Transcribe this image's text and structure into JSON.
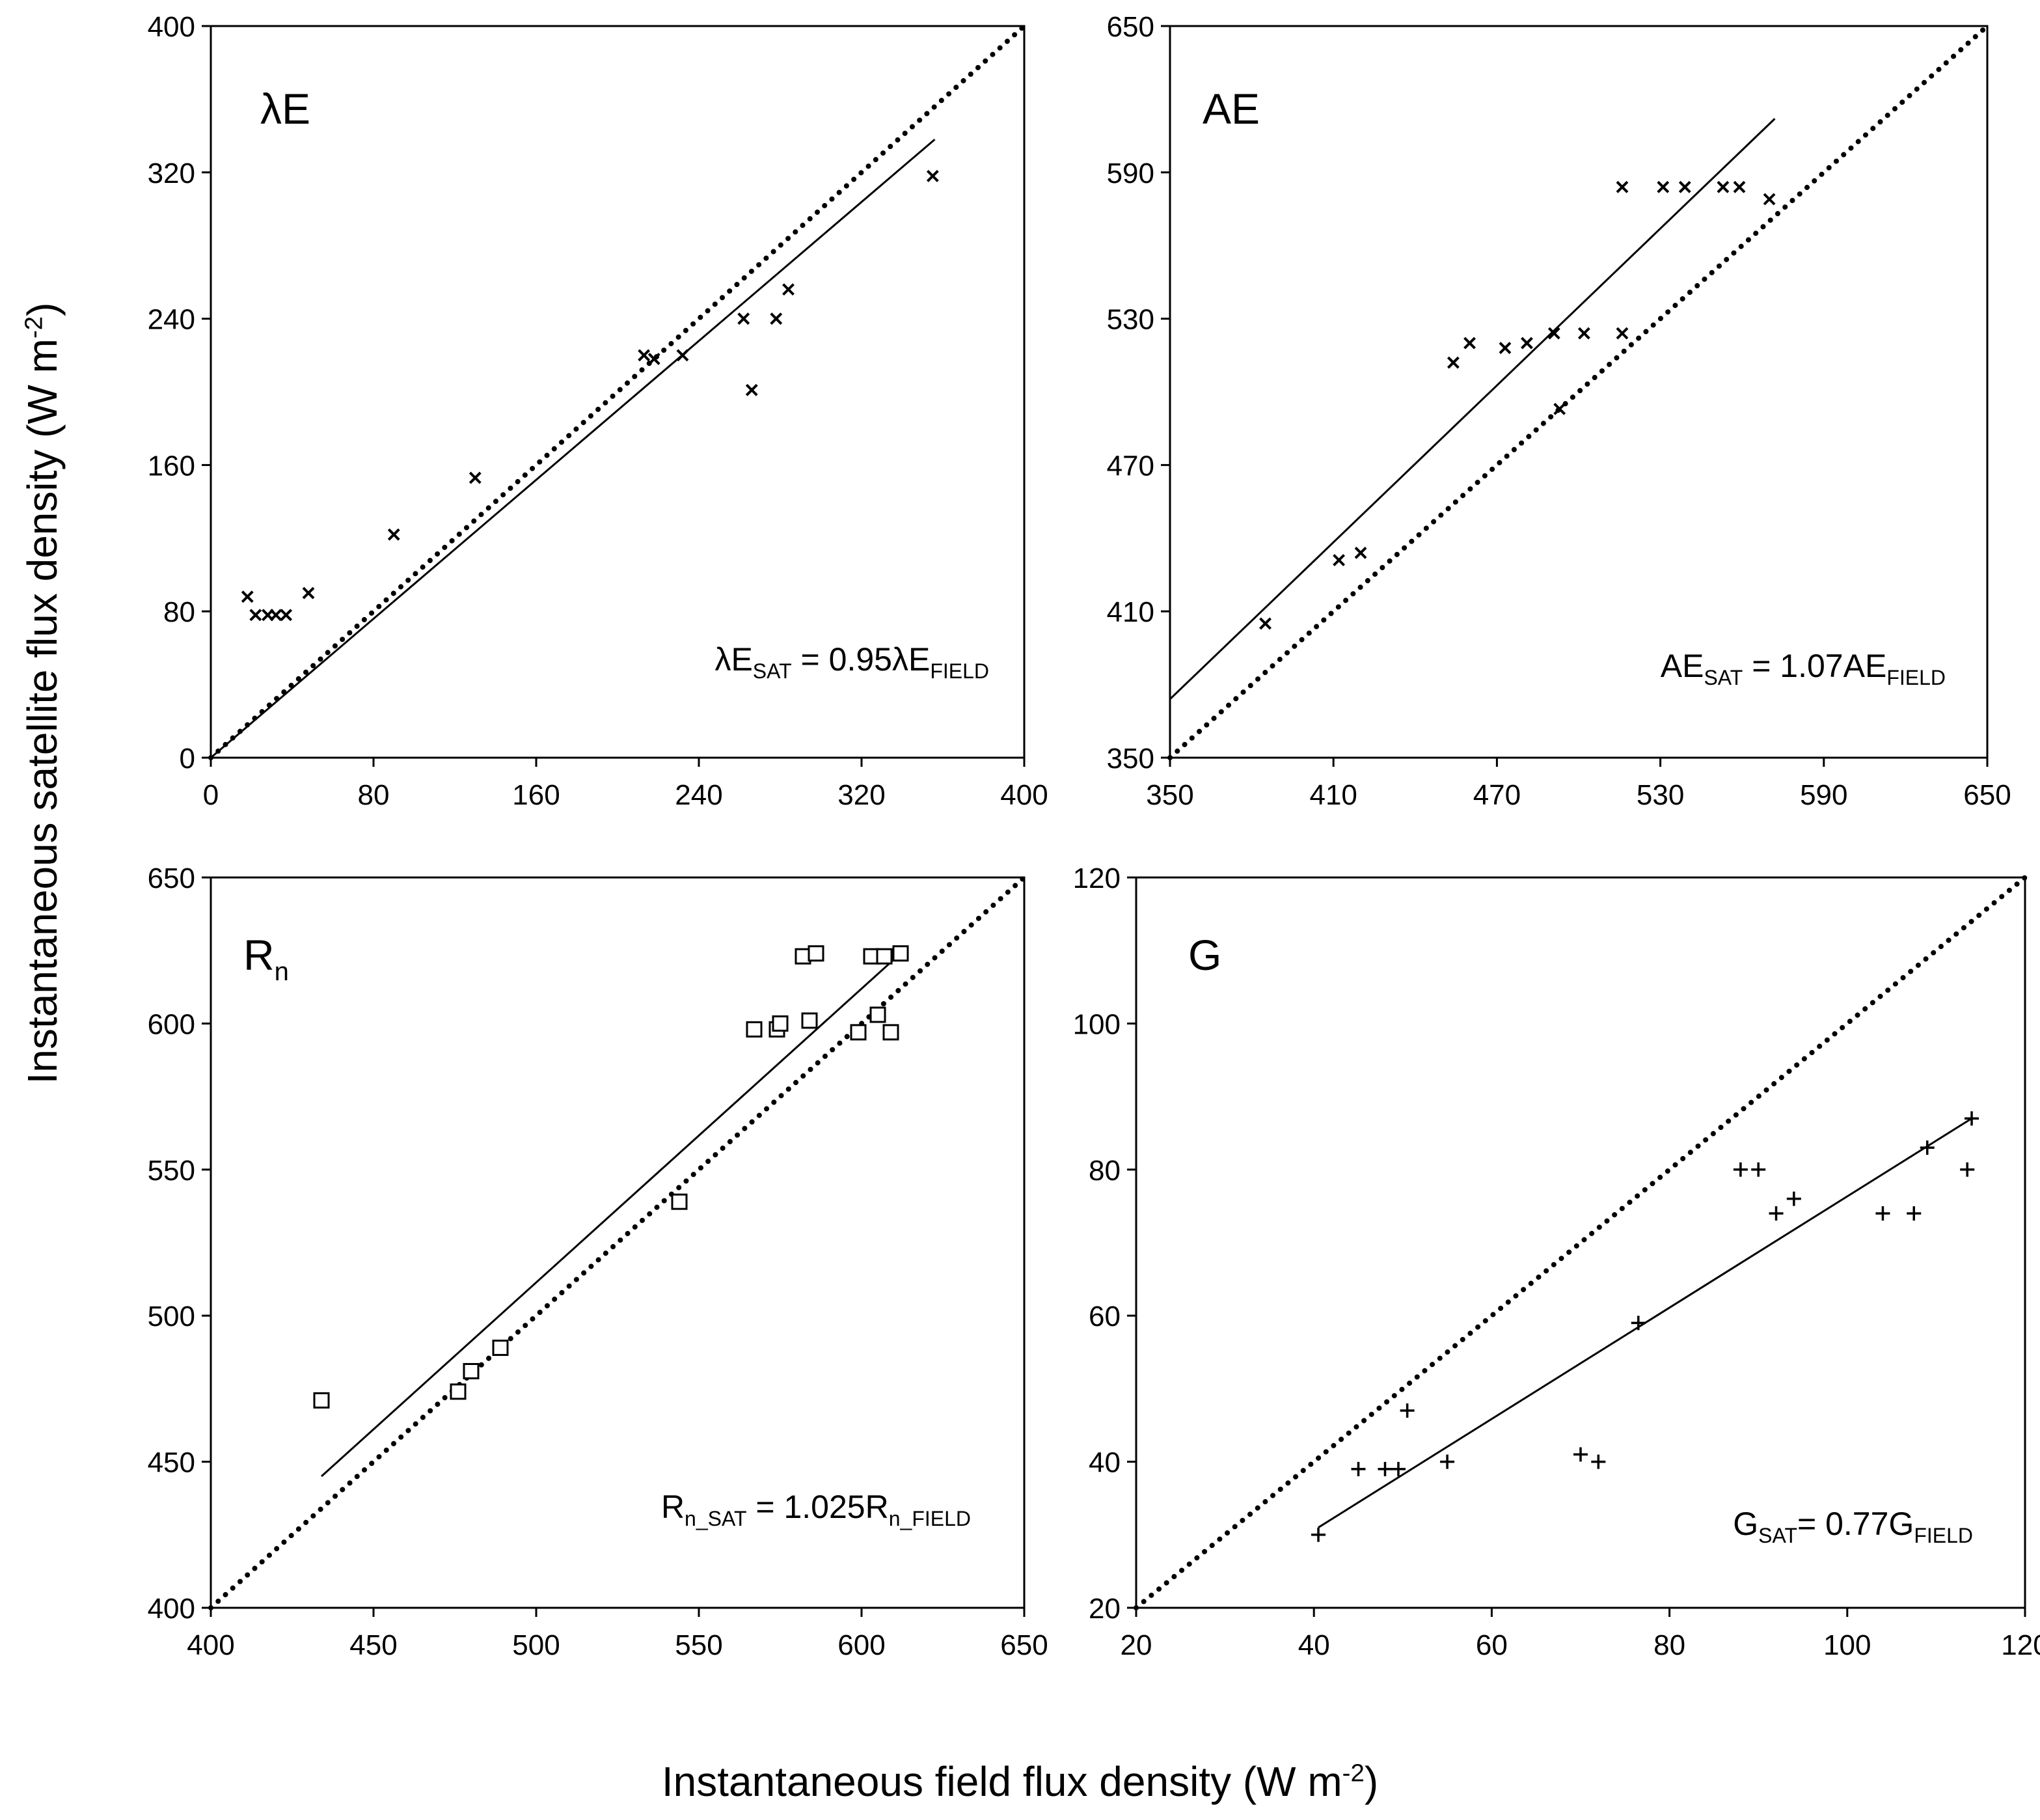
{
  "figure": {
    "y_axis_label": "Instantaneous satellite flux density (W m",
    "y_axis_label_sup": "-2",
    "y_axis_label_end": ")",
    "x_axis_label": "Instantaneous field flux density (W m",
    "x_axis_label_sup": "-2",
    "x_axis_label_end": ")"
  },
  "chart_data": [
    {
      "type": "scatter",
      "panel_label": "λE",
      "panel_label_sub": "",
      "equation": {
        "lhs": "λE",
        "lhs_sub": "SAT",
        "mid": " = 0.95λE",
        "rhs_sub": "FIELD"
      },
      "marker": "x",
      "xlim": [
        0,
        400
      ],
      "ylim": [
        0,
        400
      ],
      "xticks": [
        0,
        80,
        160,
        240,
        320,
        400
      ],
      "yticks": [
        0,
        80,
        160,
        240,
        320,
        400
      ],
      "one_to_one_line": true,
      "fit_line": [
        [
          0,
          0
        ],
        [
          356,
          338
        ]
      ],
      "series": [
        {
          "name": "λE",
          "points": [
            [
              18,
              88
            ],
            [
              22,
              78
            ],
            [
              28,
              78
            ],
            [
              32,
              78
            ],
            [
              37,
              78
            ],
            [
              48,
              90
            ],
            [
              90,
              122
            ],
            [
              130,
              153
            ],
            [
              213,
              220
            ],
            [
              218,
              218
            ],
            [
              232,
              220
            ],
            [
              262,
              240
            ],
            [
              266,
              201
            ],
            [
              278,
              240
            ],
            [
              284,
              256
            ],
            [
              355,
              318
            ]
          ]
        }
      ]
    },
    {
      "type": "scatter",
      "panel_label": "AE",
      "panel_label_sub": "",
      "equation": {
        "lhs": "AE",
        "lhs_sub": "SAT",
        "mid": " = 1.07AE",
        "rhs_sub": "FIELD"
      },
      "marker": "x",
      "xlim": [
        350,
        650
      ],
      "ylim": [
        350,
        650
      ],
      "xticks": [
        350,
        410,
        470,
        530,
        590,
        650
      ],
      "yticks": [
        350,
        410,
        470,
        530,
        590,
        650
      ],
      "one_to_one_line": true,
      "fit_line": [
        [
          350,
          374
        ],
        [
          572,
          612
        ]
      ],
      "series": [
        {
          "name": "AE",
          "points": [
            [
              385,
              405
            ],
            [
              412,
              431
            ],
            [
              420,
              434
            ],
            [
              454,
              512
            ],
            [
              460,
              520
            ],
            [
              473,
              518
            ],
            [
              481,
              520
            ],
            [
              491,
              524
            ],
            [
              493,
              493
            ],
            [
              502,
              524
            ],
            [
              516,
              524
            ],
            [
              516,
              584
            ],
            [
              531,
              584
            ],
            [
              539,
              584
            ],
            [
              553,
              584
            ],
            [
              559,
              584
            ],
            [
              570,
              579
            ]
          ]
        }
      ]
    },
    {
      "type": "scatter",
      "panel_label": "R",
      "panel_label_sub": "n",
      "equation": {
        "lhs": "R",
        "lhs_sub": "n_SAT",
        "mid": " = 1.025R",
        "rhs_sub": "n_FIELD"
      },
      "marker": "square",
      "xlim": [
        400,
        650
      ],
      "ylim": [
        400,
        650
      ],
      "xticks": [
        400,
        450,
        500,
        550,
        600,
        650
      ],
      "yticks": [
        400,
        450,
        500,
        550,
        600,
        650
      ],
      "one_to_one_line": true,
      "fit_line": [
        [
          434,
          445
        ],
        [
          612,
          624
        ]
      ],
      "series": [
        {
          "name": "Rn",
          "points": [
            [
              434,
              471
            ],
            [
              476,
              474
            ],
            [
              480,
              481
            ],
            [
              489,
              489
            ],
            [
              544,
              539
            ],
            [
              567,
              598
            ],
            [
              574,
              598
            ],
            [
              575,
              600
            ],
            [
              584,
              601
            ],
            [
              582,
              623
            ],
            [
              586,
              624
            ],
            [
              599,
              597
            ],
            [
              603,
              623
            ],
            [
              605,
              603
            ],
            [
              607,
              623
            ],
            [
              609,
              597
            ],
            [
              612,
              624
            ]
          ]
        }
      ]
    },
    {
      "type": "scatter",
      "panel_label": "G",
      "panel_label_sub": "",
      "equation": {
        "lhs": "G",
        "lhs_sub": "SAT",
        "mid": "= 0.77G",
        "rhs_sub": "FIELD"
      },
      "marker": "plus",
      "xlim": [
        20,
        120
      ],
      "ylim": [
        20,
        120
      ],
      "xticks": [
        20,
        40,
        60,
        80,
        100,
        120
      ],
      "yticks": [
        20,
        40,
        60,
        80,
        100,
        120
      ],
      "one_to_one_line": true,
      "fit_line": [
        [
          40.5,
          31
        ],
        [
          114,
          87
        ]
      ],
      "series": [
        {
          "name": "G",
          "points": [
            [
              40.5,
              30
            ],
            [
              45,
              39
            ],
            [
              48,
              39
            ],
            [
              49.5,
              39
            ],
            [
              50.5,
              47
            ],
            [
              55,
              40
            ],
            [
              70,
              41
            ],
            [
              72,
              40
            ],
            [
              76.5,
              59
            ],
            [
              88,
              80
            ],
            [
              90,
              80
            ],
            [
              92,
              74
            ],
            [
              94,
              76
            ],
            [
              104,
              74
            ],
            [
              107.5,
              74
            ],
            [
              109,
              83
            ],
            [
              113.5,
              80
            ],
            [
              114,
              87
            ]
          ]
        }
      ]
    }
  ]
}
